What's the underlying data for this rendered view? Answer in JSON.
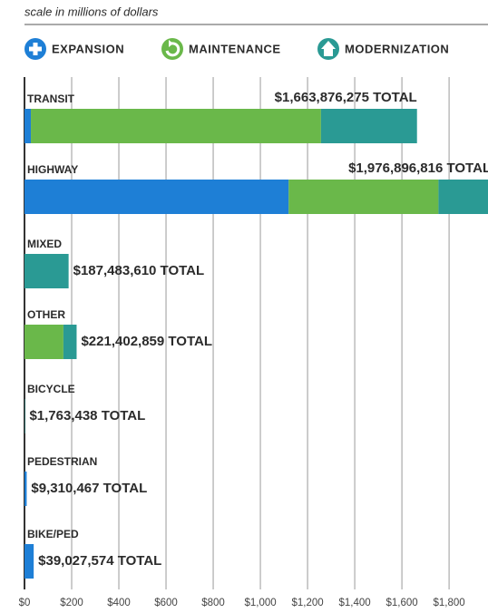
{
  "chart_data": {
    "type": "stacked_bar_horizontal",
    "subtitle": "scale in millions of dollars",
    "categories": [
      "TRANSIT",
      "HIGHWAY",
      "MIXED",
      "OTHER",
      "BICYCLE",
      "PEDESTRIAN",
      "BIKE/PED"
    ],
    "series": [
      {
        "name": "EXPANSION",
        "color": "#1e7fd6",
        "values": [
          27,
          1120,
          0,
          0,
          0,
          9.3,
          39
        ]
      },
      {
        "name": "MAINTENANCE",
        "color": "#6ab84a",
        "values": [
          1230,
          635,
          0,
          165,
          0,
          0,
          0
        ]
      },
      {
        "name": "MODERNIZATION",
        "color": "#2a9a94",
        "values": [
          407,
          222,
          187,
          56,
          1.8,
          0,
          0
        ]
      }
    ],
    "total_labels": [
      "$1,663,876,275 TOTAL",
      "$1,976,896,816 TOTAL",
      "$187,483,610 TOTAL",
      "$221,402,859 TOTAL",
      "$1,763,438 TOTAL",
      "$9,310,467 TOTAL",
      "$39,027,574 TOTAL"
    ],
    "xlim": [
      0,
      1965
    ],
    "xticks": [
      {
        "value": 0,
        "label": "$0"
      },
      {
        "value": 200,
        "label": "$200"
      },
      {
        "value": 400,
        "label": "$400"
      },
      {
        "value": 600,
        "label": "$600"
      },
      {
        "value": 800,
        "label": "$800"
      },
      {
        "value": 1000,
        "label": "$1,000"
      },
      {
        "value": 1200,
        "label": "$1,200"
      },
      {
        "value": 1400,
        "label": "$1,400"
      },
      {
        "value": 1600,
        "label": "$1,600"
      },
      {
        "value": 1800,
        "label": "$1,800"
      }
    ],
    "grid": true
  }
}
